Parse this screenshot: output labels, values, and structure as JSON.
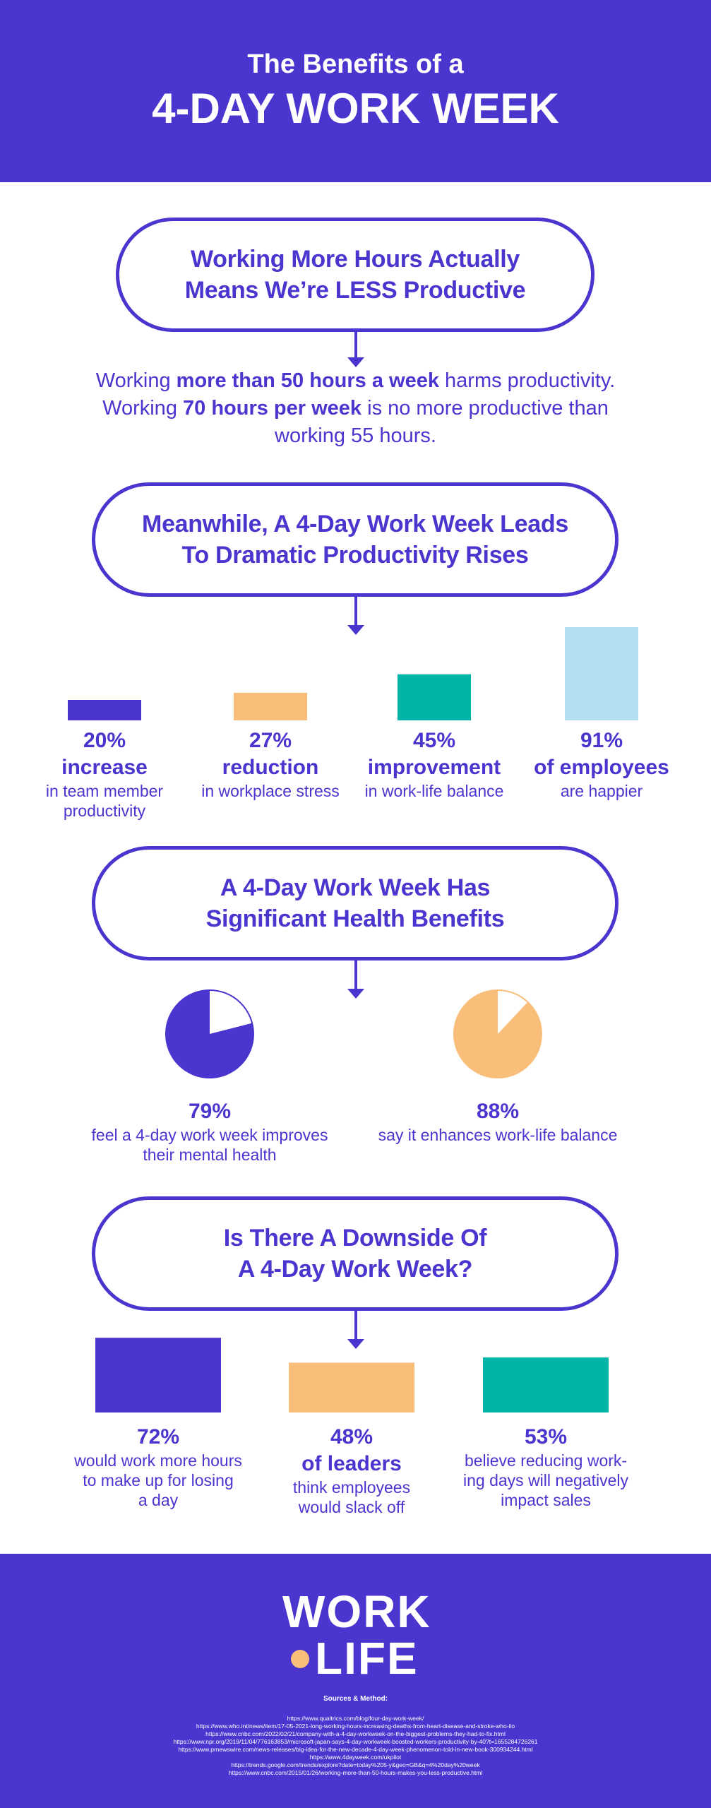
{
  "header": {
    "subtitle": "The Benefits of a",
    "title": "4-DAY WORK WEEK"
  },
  "section1": {
    "pill_line1": "Working More Hours Actually",
    "pill_line2": "Means We’re LESS Productive",
    "para": {
      "l1_a": "Working ",
      "l1_b": "more than 50 hours a week",
      "l1_c": " harms productivity.",
      "l2_a": "Working ",
      "l2_b": "70 hours per week",
      "l2_c": " is no more productive than",
      "l3": "working 55 hours."
    }
  },
  "section2": {
    "pill_line1": "Meanwhile, A 4-Day Work Week Leads",
    "pill_line2": "To Dramatic Productivity Rises"
  },
  "section3": {
    "pill_line1": "A 4-Day Work Week Has",
    "pill_line2": "Significant Health Benefits"
  },
  "section4": {
    "pill_line1": "Is There A Downside Of",
    "pill_line2": "A 4-Day Work Week?"
  },
  "chart_data": [
    {
      "type": "bar",
      "categories": [
        "increase",
        "reduction",
        "improvement",
        "of employees"
      ],
      "values": [
        20,
        27,
        45,
        91
      ],
      "unit": "%",
      "colors": [
        "#4a35cf",
        "#f9bf7a",
        "#00b5a7",
        "#b3def1"
      ],
      "labels": [
        "20%",
        "27%",
        "45%",
        "91%"
      ],
      "desc": [
        [
          "in team member",
          "productivity"
        ],
        [
          "in workplace stress"
        ],
        [
          "in work-life balance"
        ],
        [
          "are happier"
        ]
      ]
    },
    {
      "type": "pie",
      "items": [
        {
          "label": "79%",
          "value": 79,
          "color": "#4a35cf",
          "desc": [
            "feel a 4-day work week improves",
            "their mental health"
          ]
        },
        {
          "label": "88%",
          "value": 88,
          "color": "#f9bf7a",
          "desc": [
            "say it enhances work-life balance"
          ]
        }
      ]
    },
    {
      "type": "bar",
      "values": [
        72,
        48,
        53
      ],
      "unit": "%",
      "colors": [
        "#4a35cf",
        "#f9bf7a",
        "#00b5a7"
      ],
      "labels": [
        "72%",
        "48%",
        "53%"
      ],
      "subheads": [
        "",
        "of leaders",
        ""
      ],
      "desc": [
        [
          "would work more hours",
          "to make up for losing",
          "a day"
        ],
        [
          "think employees",
          "would slack off"
        ],
        [
          "believe reducing work-",
          "ing days will negatively",
          "impact sales"
        ]
      ]
    }
  ],
  "footer": {
    "logo_line1": "WORK",
    "logo_line2": "LIFE",
    "sources_title": "Sources & Method:",
    "sources": [
      "https://www.qualtrics.com/blog/four-day-work-week/",
      "https://www.who.int/news/item/17-05-2021-long-working-hours-increasing-deaths-from-heart-disease-and-stroke-who-ilo",
      "https://www.cnbc.com/2022/02/21/company-with-a-4-day-workweek-on-the-biggest-problems-they-had-to-fix.html",
      "https://www.npr.org/2019/11/04/776163853/microsoft-japan-says-4-day-workweek-boosted-workers-productivity-by-40?t=1655284726261",
      "https://www.prnewswire.com/news-releases/big-idea-for-the-new-decade-4-day-week-phenomenon-told-in-new-book-300934244.html",
      "https://www.4dayweek.com/ukpilot",
      "https://trends.google.com/trends/explore?date=today%205-y&geo=GB&q=4%20day%20week",
      "https://www.cnbc.com/2015/01/26/working-more-than-50-hours-makes-you-less-productive.html"
    ]
  }
}
